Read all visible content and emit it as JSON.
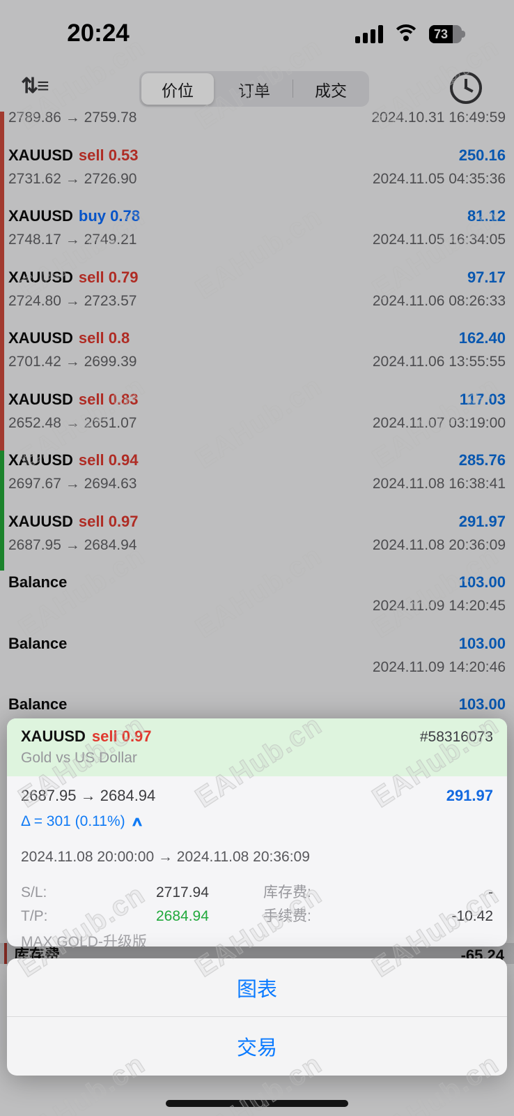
{
  "status_bar": {
    "time": "20:24",
    "battery_percent": "73"
  },
  "toolbar": {
    "tabs": [
      {
        "label": "价位"
      },
      {
        "label": "订单"
      },
      {
        "label": "成交"
      }
    ],
    "selected_tab": "价位"
  },
  "list": {
    "rows": [
      {
        "type": "trade-partial",
        "prices": "2789.86 → 2759.78",
        "time": "2024.10.31 16:49:59"
      },
      {
        "type": "trade",
        "symbol": "XAUUSD",
        "action": "sell 0.53",
        "profit": "250.16",
        "prices": "2731.62 → 2726.90",
        "time": "2024.11.05 04:35:36"
      },
      {
        "type": "trade",
        "symbol": "XAUUSD",
        "action": "buy 0.78",
        "profit": "81.12",
        "prices": "2748.17 → 2749.21",
        "time": "2024.11.05 16:34:05"
      },
      {
        "type": "trade",
        "symbol": "XAUUSD",
        "action": "sell 0.79",
        "profit": "97.17",
        "prices": "2724.80 → 2723.57",
        "time": "2024.11.06 08:26:33"
      },
      {
        "type": "trade",
        "symbol": "XAUUSD",
        "action": "sell 0.8",
        "profit": "162.40",
        "prices": "2701.42 → 2699.39",
        "time": "2024.11.06 13:55:55"
      },
      {
        "type": "trade",
        "symbol": "XAUUSD",
        "action": "sell 0.83",
        "profit": "117.03",
        "prices": "2652.48 → 2651.07",
        "time": "2024.11.07 03:19:00"
      },
      {
        "type": "trade",
        "symbol": "XAUUSD",
        "action": "sell 0.94",
        "profit": "285.76",
        "prices": "2697.67 → 2694.63",
        "time": "2024.11.08 16:38:41"
      },
      {
        "type": "trade",
        "symbol": "XAUUSD",
        "action": "sell 0.97",
        "profit": "291.97",
        "prices": "2687.95 → 2684.94",
        "time": "2024.11.08 20:36:09"
      },
      {
        "type": "balance",
        "symbol": "Balance",
        "profit": "103.00",
        "time": "2024.11.09 14:20:45"
      },
      {
        "type": "balance",
        "symbol": "Balance",
        "profit": "103.00",
        "time": "2024.11.09 14:20:46"
      },
      {
        "type": "balance-partial",
        "symbol": "Balance",
        "profit": "103.00"
      }
    ]
  },
  "hidden_row": {
    "label": "库存费",
    "value": "-65.24"
  },
  "detail_sheet": {
    "symbol": "XAUUSD",
    "action": "sell 0.97",
    "ticket": "#58316073",
    "description": "Gold vs US Dollar",
    "prices": "2687.95 → 2684.94",
    "profit": "291.97",
    "delta": "Δ = 301 (0.11%)",
    "chevron": "∧",
    "time_range": "2024.11.08 20:00:00 → 2024.11.08 20:36:09",
    "sl_label": "S/L:",
    "sl_value": "2717.94",
    "swap_label": "库存费:",
    "swap_value": "-",
    "tp_label": "T/P:",
    "tp_value": "2684.94",
    "commission_label": "手续费:",
    "commission_value": "-10.42",
    "comment": "MAX GOLD-升级版"
  },
  "action_sheet": {
    "chart_label": "图表",
    "trade_label": "交易"
  },
  "watermark": {
    "text": "EAHub.cn"
  },
  "colors": {
    "profit_blue": "#0b6fe0",
    "sell_red": "#e0392f",
    "buy_blue": "#0a6cff",
    "tp_green": "#21a93c",
    "header_green": "#def4de",
    "bar_red": "#cf4a3d",
    "bar_green": "#23a838",
    "action_blue": "#0a7aff"
  }
}
